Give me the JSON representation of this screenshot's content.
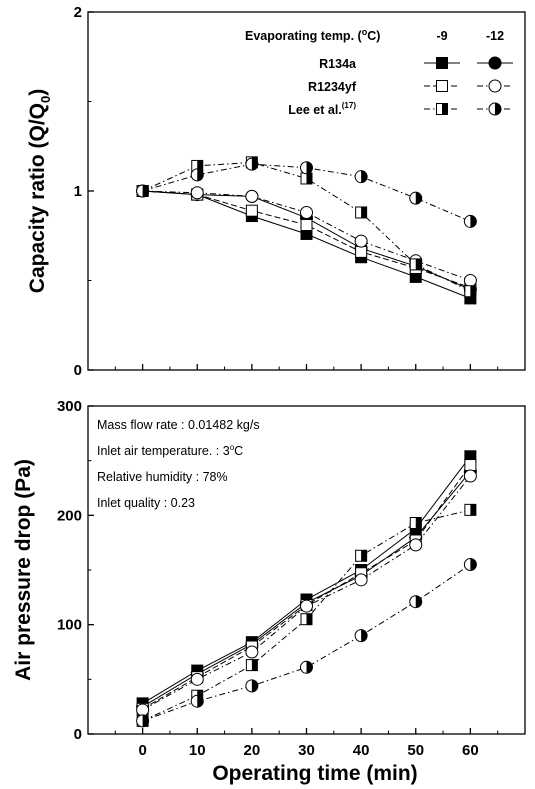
{
  "chart_data": [
    {
      "type": "line",
      "xlabel": "Operating time (min)",
      "ylabel": "Capacity ratio (Q/Q",
      "ylabel_sub": "0",
      "ylabel_close": ")",
      "x": [
        0,
        10,
        20,
        30,
        40,
        50,
        60
      ],
      "xlim": [
        -10,
        70
      ],
      "ylim": [
        0,
        2
      ],
      "yticks": [
        0,
        1,
        2
      ],
      "legend": {
        "title": "Evaporating temp. (",
        "title_sup": "o",
        "title_end": "C)",
        "col1": "-9",
        "col2": "-12",
        "placement": "top-right",
        "rows": [
          {
            "label": "R134a",
            "sup": ""
          },
          {
            "label": "R1234yf",
            "sup": ""
          },
          {
            "label": "Lee et al.",
            "sup": "(17)"
          }
        ]
      },
      "series": [
        {
          "name": "R134a -9",
          "values": [
            1.0,
            0.98,
            0.86,
            0.76,
            0.63,
            0.52,
            0.4
          ],
          "marker": "square",
          "fill": "full",
          "dash": "solid"
        },
        {
          "name": "R134a -12",
          "values": [
            1.0,
            0.98,
            0.97,
            0.85,
            0.68,
            0.58,
            0.45
          ],
          "marker": "circle",
          "fill": "full",
          "dash": "solid"
        },
        {
          "name": "R1234yf -9",
          "values": [
            1.0,
            0.98,
            0.89,
            0.81,
            0.66,
            0.57,
            0.46
          ],
          "marker": "square",
          "fill": "none",
          "dash": "dash"
        },
        {
          "name": "R1234yf -12",
          "values": [
            1.0,
            0.99,
            0.97,
            0.88,
            0.72,
            0.61,
            0.5
          ],
          "marker": "circle",
          "fill": "none",
          "dash": "dashdot"
        },
        {
          "name": "Lee et al. -9",
          "values": [
            1.0,
            1.14,
            1.16,
            1.07,
            0.88,
            0.59,
            0.44
          ],
          "marker": "square",
          "fill": "half",
          "dash": "dashdot"
        },
        {
          "name": "Lee et al. -12",
          "values": [
            1.0,
            1.09,
            1.15,
            1.13,
            1.08,
            0.96,
            0.83
          ],
          "marker": "circle",
          "fill": "half",
          "dash": "dashdot"
        }
      ]
    },
    {
      "type": "line",
      "xlabel": "Operating time (min)",
      "ylabel": "Air pressure drop (Pa)",
      "x": [
        0,
        10,
        20,
        30,
        40,
        50,
        60
      ],
      "xlim": [
        -10,
        70
      ],
      "ylim": [
        0,
        300
      ],
      "yticks": [
        0,
        100,
        200,
        300
      ],
      "xticks": [
        0,
        10,
        20,
        30,
        40,
        50,
        60
      ],
      "annotations": [
        {
          "text": "Mass flow rate : 0.01482 kg/s",
          "sup": "",
          "tail": ""
        },
        {
          "text": "Inlet air temperature. : 3",
          "sup": "o",
          "tail": "C"
        },
        {
          "text": "Relative humidity : 78%",
          "sup": "",
          "tail": ""
        },
        {
          "text": "Inlet quality : 0.23",
          "sup": "",
          "tail": ""
        }
      ],
      "series": [
        {
          "name": "R134a -9",
          "values": [
            28,
            58,
            84,
            123,
            150,
            188,
            254
          ],
          "marker": "square",
          "fill": "full",
          "dash": "solid"
        },
        {
          "name": "R134a -12",
          "values": [
            25,
            55,
            82,
            120,
            145,
            180,
            240
          ],
          "marker": "circle",
          "fill": "full",
          "dash": "solid"
        },
        {
          "name": "R1234yf -9",
          "values": [
            23,
            52,
            80,
            118,
            147,
            177,
            246
          ],
          "marker": "square",
          "fill": "none",
          "dash": "dash"
        },
        {
          "name": "R1234yf -12",
          "values": [
            22,
            50,
            75,
            117,
            141,
            173,
            236
          ],
          "marker": "circle",
          "fill": "none",
          "dash": "dashdot"
        },
        {
          "name": "Lee et al. -9",
          "values": [
            12,
            35,
            63,
            105,
            163,
            193,
            205
          ],
          "marker": "square",
          "fill": "half",
          "dash": "dashdot"
        },
        {
          "name": "Lee et al. -12",
          "values": [
            12,
            30,
            44,
            61,
            90,
            121,
            155
          ],
          "marker": "circle",
          "fill": "half",
          "dash": "dashdot"
        }
      ]
    }
  ]
}
